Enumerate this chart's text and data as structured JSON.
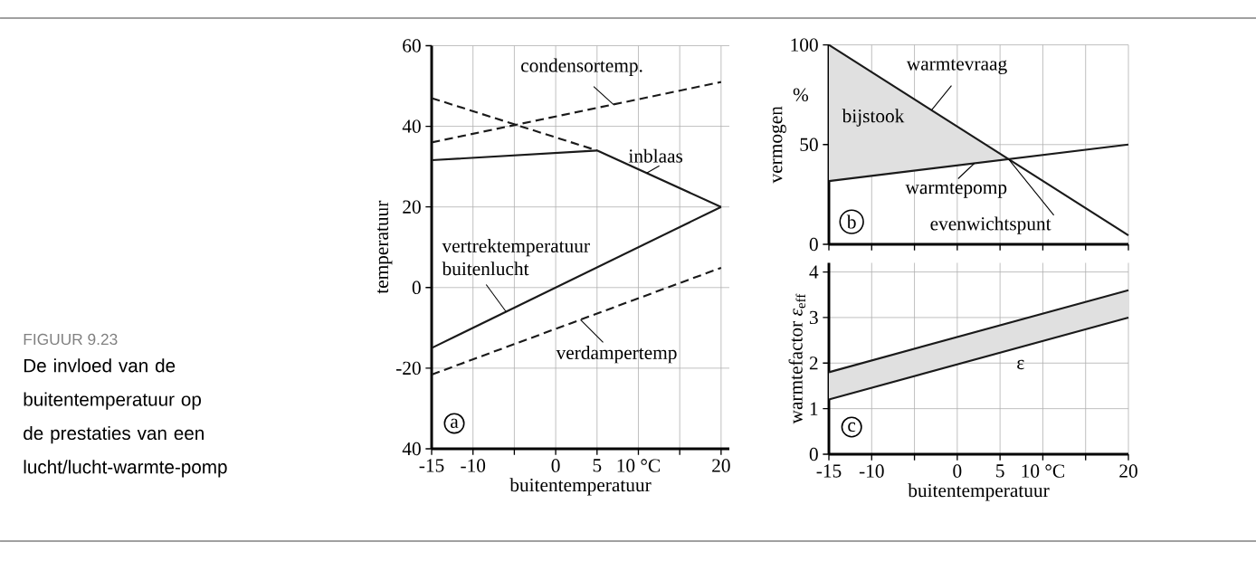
{
  "chart_data": [
    {
      "type": "other",
      "title": "FIGUUR 9.23",
      "subtitle": "De invloed van de buitentemperatuur op de prestaties van een lucht/lucht-warmte-pomp"
    },
    {
      "type": "line",
      "xlabel": "buitentemperatuur",
      "ylabel": "temperatuur",
      "xlim": [
        -15,
        21
      ],
      "ylim": [
        -40,
        60
      ],
      "xticks": [
        -15,
        -10,
        {
          "value": -5,
          "label": null
        },
        0,
        5,
        {
          "value": 10,
          "label": "10 °C"
        },
        {
          "value": 15,
          "label": null
        },
        20
      ],
      "yticks": [
        {
          "value": -40,
          "label": "40"
        },
        -20,
        0,
        20,
        40,
        60
      ],
      "grid": true,
      "line_style": "solid",
      "series": [
        {
          "x": [
            -15,
            20
          ],
          "values": [
            36,
            51
          ],
          "color": "#1a1a1a",
          "line_style": "dashed"
        },
        {
          "x": [
            -15,
            5
          ],
          "values": [
            47,
            34
          ],
          "color": "#1a1a1a",
          "line_style": "dashed"
        },
        {
          "x": [
            -15,
            5,
            20
          ],
          "values": [
            31.6,
            34,
            20
          ],
          "color": "#1a1a1a"
        },
        {
          "x": [
            -15,
            20
          ],
          "values": [
            -15,
            20
          ],
          "color": "#1a1a1a"
        },
        {
          "x": [
            -15,
            20
          ],
          "values": [
            -21.6,
            4.9
          ],
          "color": "#1a1a1a",
          "line_style": "dashed"
        }
      ],
      "annotations": [
        {
          "text": "condensortemp.",
          "x": 7,
          "y": 45.4
        },
        {
          "text": "inblaas",
          "x": 11,
          "y": 28.4
        },
        {
          "text": "vertrektemperatuur buitenlucht",
          "x": -6,
          "y": -6
        },
        {
          "text": "verdampertemp",
          "x": 3,
          "y": -8
        },
        "a"
      ]
    },
    {
      "type": "line",
      "ylabel": "vermogen",
      "xlim": [
        -15,
        20
      ],
      "ylim": [
        0,
        100
      ],
      "xticks": [
        {
          "value": -15,
          "label": null
        },
        {
          "value": -10,
          "label": null
        },
        {
          "value": -5,
          "label": null
        },
        {
          "value": 0,
          "label": null
        },
        {
          "value": 5,
          "label": null
        },
        {
          "value": 10,
          "label": null
        },
        {
          "value": 15,
          "label": null
        },
        {
          "value": 20,
          "label": null
        }
      ],
      "yticks": [
        0,
        50,
        100
      ],
      "grid": true,
      "tick_labels": "y",
      "series": [
        {
          "x": [
            -15,
            6,
            20
          ],
          "values": [
            100,
            42.7,
            4.5
          ],
          "lower": [
            31.7,
            42.7,
            null
          ],
          "upper": [
            100,
            42.7,
            null
          ],
          "color": "#1a1a1a"
        },
        {
          "x": [
            -15,
            20
          ],
          "values": [
            31.7,
            50
          ],
          "color": "#1a1a1a"
        }
      ],
      "annotations": [
        {
          "text": "warmtevraag",
          "x": -3,
          "y": 67.3
        },
        {
          "text": "warmtepomp",
          "x": 2,
          "y": 40.6
        },
        {
          "text": "evenwichtspunt",
          "x": 6,
          "y": 42.7
        },
        "b",
        "%",
        "bijstook"
      ]
    },
    {
      "type": "line",
      "xlabel": "buitentemperatuur",
      "ylabel": "warmtefactor *ε*$_{eff}$",
      "xlim": [
        -15,
        20
      ],
      "ylim": [
        0,
        4.2
      ],
      "xticks": [
        -15,
        -10,
        {
          "value": -5,
          "label": null
        },
        0,
        5,
        {
          "value": 10,
          "label": "10 °C"
        },
        {
          "value": 15,
          "label": null
        },
        20
      ],
      "yticks": [
        0,
        1,
        2,
        3,
        4
      ],
      "grid": true,
      "series": [
        {
          "x": [
            -15,
            20
          ],
          "values": [
            1.8,
            3.6
          ],
          "lower": [
            1.2,
            3.0
          ],
          "upper": [
            1.8,
            3.6
          ],
          "color": "#1a1a1a"
        },
        {
          "x": [
            -15,
            20
          ],
          "values": [
            1.2,
            3.0
          ],
          "color": "#1a1a1a"
        }
      ],
      "annotations": [
        "c",
        "ε"
      ]
    }
  ]
}
